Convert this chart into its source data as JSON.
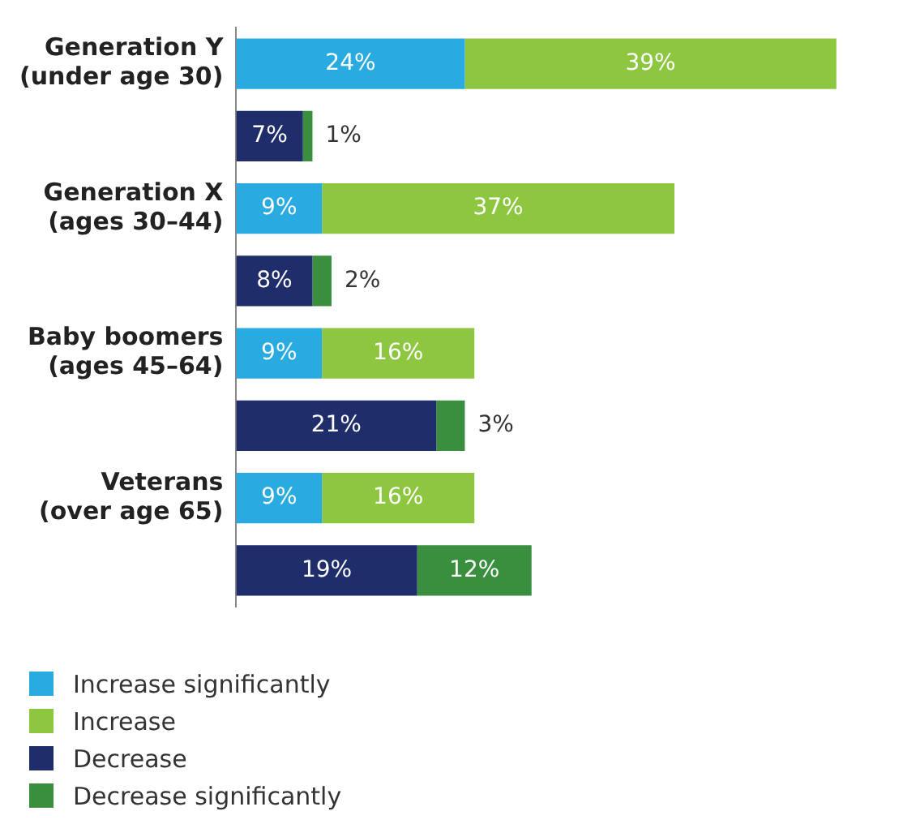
{
  "chart_data": {
    "type": "bar",
    "orientation": "horizontal",
    "stacked": true,
    "tick_labels": "y",
    "legend": "bottom left",
    "categories": [
      "Generation Y\n(under age 30)",
      null,
      "Generation X\n(ages 30–44)",
      null,
      "Baby boomers\n(ages 45–64)",
      null,
      "Veterans\n(over age 65)",
      null
    ],
    "series": [
      {
        "name": "Increase significantly",
        "color": "#29abe2",
        "values": [
          24,
          null,
          9,
          null,
          9,
          null,
          9,
          null
        ],
        "value_labels": [
          "24%",
          null,
          "9%",
          null,
          "9%",
          null,
          "9%",
          null
        ]
      },
      {
        "name": "Increase",
        "color": "#8dc63f",
        "values": [
          39,
          null,
          37,
          null,
          16,
          null,
          16,
          null
        ],
        "value_labels": [
          "39%",
          null,
          "37%",
          null,
          "16%",
          null,
          "16%",
          null
        ]
      },
      {
        "name": "Decrease",
        "color": "#1f2d6b",
        "values": [
          null,
          7,
          null,
          8,
          null,
          21,
          null,
          19
        ],
        "value_labels": [
          null,
          "7%",
          null,
          "8%",
          null,
          "21%",
          null,
          "19%"
        ]
      },
      {
        "name": "Decrease significantly",
        "color": "#3a8f3f",
        "values": [
          null,
          1,
          null,
          2,
          null,
          3,
          null,
          12
        ],
        "value_labels": [
          null,
          "1%",
          null,
          "2%",
          null,
          "3%",
          null,
          "12%"
        ]
      }
    ]
  }
}
